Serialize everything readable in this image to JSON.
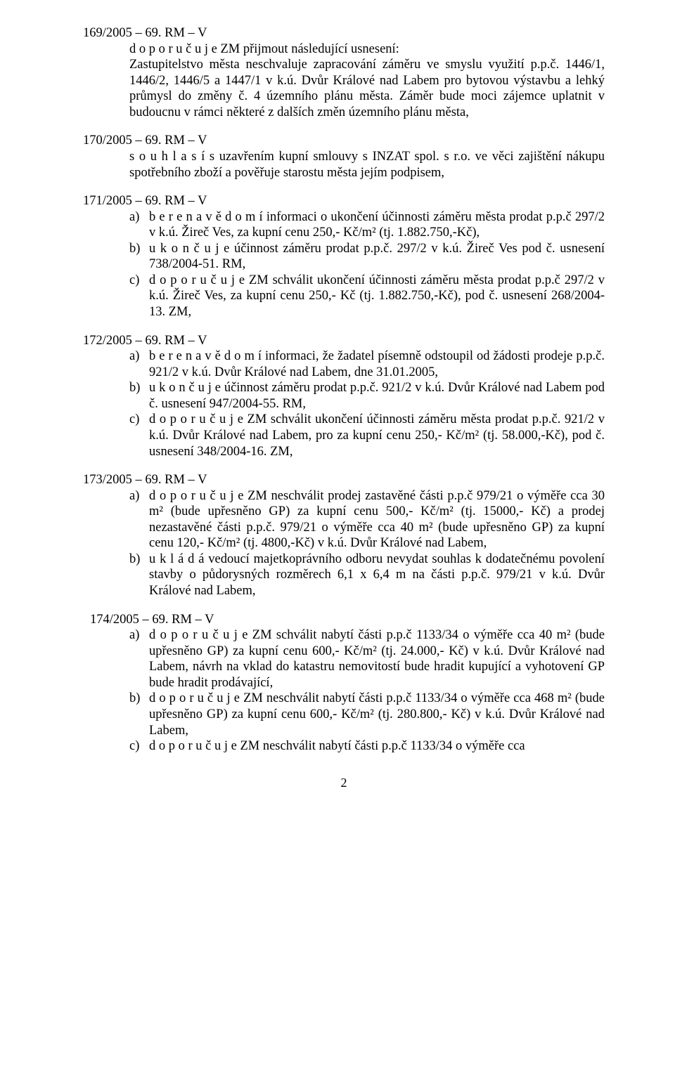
{
  "res169": {
    "head": "169/2005 – 69. RM – V",
    "body": "d o p o r u č u j e  ZM  přijmout následující usnesení:\nZastupitelstvo města neschvaluje zapracování záměru  ve smyslu využití p.p.č. 1446/1, 1446/2, 1446/5 a 1447/1 v k.ú. Dvůr Králové nad Labem pro bytovou výstavbu a lehký průmysl do změny č. 4 územního plánu města. Záměr bude moci  zájemce  uplatnit v budoucnu v rámci  některé z dalších  změn  územního plánu města,"
  },
  "res170": {
    "head": "170/2005 – 69. RM – V",
    "body": "s o u h l a s í  s uzavřením kupní smlouvy s INZAT spol. s r.o. ve věci zajištění nákupu spotřebního zboží a pověřuje starostu města jejím podpisem,"
  },
  "res171": {
    "head": "171/2005 – 69. RM – V",
    "items": [
      {
        "m": "a)",
        "t": "b e r e   n a   v ě d o m í   informaci o ukončení účinnosti záměru města prodat p.p.č 297/2 v k.ú. Žireč Ves, za kupní cenu 250,- Kč/m² (tj. 1.882.750,-Kč),"
      },
      {
        "m": "b)",
        "t": "u k o n č u j e  účinnost záměru prodat p.p.č. 297/2 v k.ú. Žireč Ves pod č. usnesení 738/2004-51. RM,"
      },
      {
        "m": "c)",
        "t": "d o p o r u č u j e  ZM  schválit ukončení účinnosti záměru města prodat p.p.č 297/2 v k.ú. Žireč Ves, za kupní cenu 250,- Kč (tj. 1.882.750,-Kč), pod č. usnesení 268/2004-13. ZM,"
      }
    ]
  },
  "res172": {
    "head": "172/2005 – 69. RM  – V",
    "items": [
      {
        "m": "a)",
        "t": "b e r e   n a   v ě d o m í  informaci, že žadatel písemně odstoupil od žádosti prodeje p.p.č. 921/2 v k.ú. Dvůr Králové nad Labem, dne 31.01.2005,"
      },
      {
        "m": "b)",
        "t": "u k o n č u j e  účinnost záměru prodat p.p.č. 921/2 v k.ú. Dvůr Králové nad Labem pod č. usnesení 947/2004-55. RM,"
      },
      {
        "m": "c)",
        "t": "d o p o r u č u j e  ZM schválit ukončení účinnosti záměru města prodat p.p.č. 921/2 v k.ú. Dvůr Králové nad Labem, pro  za kupní cenu 250,- Kč/m² (tj. 58.000,-Kč), pod č. usnesení 348/2004-16. ZM,"
      }
    ]
  },
  "res173": {
    "head": "173/2005 – 69. RM – V",
    "items": [
      {
        "m": "a)",
        "t": "d o p o r u č u j e  ZM neschválit prodej zastavěné části p.p.č 979/21 o výměře cca 30 m² (bude upřesněno GP) za kupní cenu 500,- Kč/m² (tj. 15000,- Kč) a prodej nezastavěné části p.p.č. 979/21 o výměře cca 40 m² (bude upřesněno GP) za kupní cenu 120,- Kč/m² (tj. 4800,-Kč) v k.ú. Dvůr Králové nad Labem,"
      },
      {
        "m": "b)",
        "t": "u k l á d á    vedoucí   majetkoprávního   odboru   nevydat   souhlas k dodatečnému povolení stavby o půdorysných rozměrech 6,1 x 6,4 m na části p.p.č. 979/21 v k.ú. Dvůr Králové nad Labem,"
      }
    ]
  },
  "res174": {
    "head": "174/2005 – 69. RM – V",
    "items": [
      {
        "m": "a)",
        "t": "d o p o r u č u j e  ZM schválit nabytí části p.p.č 1133/34 o výměře cca 40 m² (bude upřesněno GP) za kupní cenu 600,- Kč/m² (tj. 24.000,- Kč)  v k.ú. Dvůr Králové nad Labem,  návrh na vklad do katastru nemovitostí bude hradit kupující a vyhotovení GP bude hradit prodávající,"
      },
      {
        "m": "b)",
        "t": "d o p o r u č u j e  ZM neschválit nabytí části p.p.č 1133/34 o výměře cca 468 m² (bude upřesněno GP) za kupní cenu 600,- Kč/m² (tj. 280.800,- Kč) v k.ú. Dvůr Králové nad Labem,"
      },
      {
        "m": "c)",
        "t": "d o p o r u č u j e  ZM neschválit nabytí části p.p.č 1133/34 o výměře cca"
      }
    ]
  },
  "page_number": "2"
}
